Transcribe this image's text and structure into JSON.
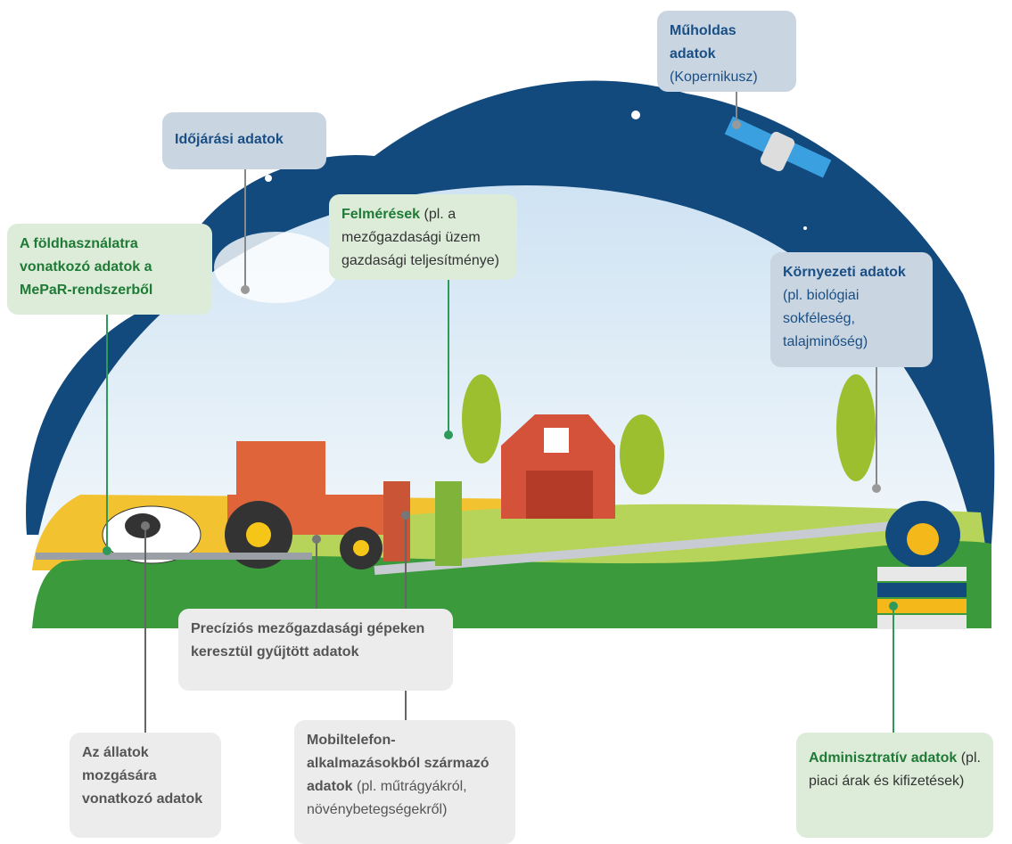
{
  "labels": [
    {
      "bold": "Műholdas adatok",
      "text": "(Kopernikusz)"
    },
    {
      "bold": "Időjárási adatok"
    },
    {
      "bold": "Felmérések",
      "text": "(pl. a mezőgazdasági üzem gazdasági teljesítménye)"
    },
    {
      "bold": "A földhasználatra vonatkozó adatok a MePaR-rendszerből"
    },
    {
      "bold": "Környezeti adatok",
      "text": "(pl. biológiai sokféleség, talajminőség)"
    },
    {
      "bold": "Precíziós mezőgazdasági gépeken keresztül gyűjtött adatok"
    },
    {
      "bold": "Az állatok mozgására vonatkozó adatok"
    },
    {
      "bold": "Mobiltelefon-alkalmazásokból származó adatok",
      "text": "(pl. műtrágyákról, növénybetegségekről)"
    },
    {
      "bold": "Adminisztratív adatok",
      "text": "(pl. piaci árak és kifizetések)"
    }
  ]
}
